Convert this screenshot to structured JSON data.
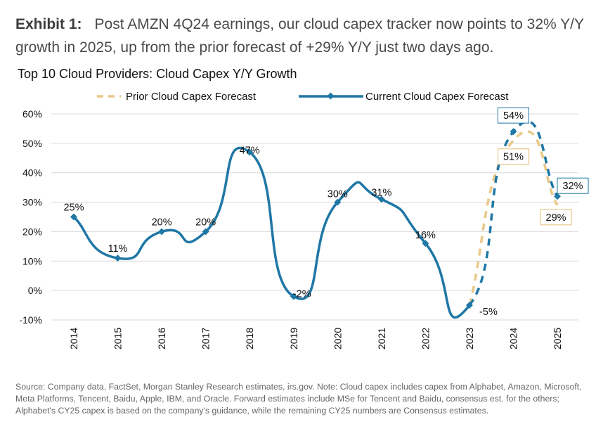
{
  "exhibit": {
    "label": "Exhibit 1:",
    "text": "Post AMZN 4Q24 earnings, our cloud capex tracker now points to 32% Y/Y growth in 2025, up from the prior forecast of +29% Y/Y just two days ago."
  },
  "colors": {
    "current": "#1f77a6",
    "prior": "#e8c98a",
    "grid": "#d9d9d9",
    "text": "#111111"
  },
  "chart_data": {
    "type": "line",
    "title": "Top 10 Cloud Providers: Cloud Capex Y/Y Growth",
    "xlabel": "",
    "ylabel": "",
    "x": [
      "2014",
      "2015",
      "2016",
      "2017",
      "2018",
      "2019",
      "2020",
      "2021",
      "2022",
      "2023",
      "2024",
      "2025"
    ],
    "ylim": [
      -10,
      60
    ],
    "yticks": [
      60,
      50,
      40,
      30,
      20,
      10,
      0,
      -10
    ],
    "ytick_labels": [
      "60%",
      "50%",
      "40%",
      "30%",
      "20%",
      "10%",
      "0%",
      "-10%"
    ],
    "grid": true,
    "legend_position": "top",
    "series": [
      {
        "name": "Prior Cloud Capex Forecast",
        "style": "dashed",
        "x": [
          "2023",
          "2024",
          "2025"
        ],
        "values": [
          -5,
          51,
          29
        ],
        "labels": [
          "",
          "51%",
          "29%"
        ],
        "boxed_labels": true
      },
      {
        "name": "Current Cloud Capex Forecast",
        "style": "solid-then-dashed",
        "dashed_from": "2023",
        "x": [
          "2014",
          "2015",
          "2016",
          "2017",
          "2018",
          "2019",
          "2020",
          "2021",
          "2022",
          "2023",
          "2024",
          "2025"
        ],
        "values": [
          25,
          11,
          20,
          20,
          47,
          -2,
          30,
          31,
          16,
          -5,
          54,
          32
        ],
        "labels": [
          "25%",
          "11%",
          "20%",
          "20%",
          "47%",
          "-2%",
          "30%",
          "31%",
          "16%",
          "-5%",
          "54%",
          "32%"
        ]
      }
    ]
  },
  "footnote": "Source: Company data, FactSet, Morgan Stanley Research estimates, irs.gov. Note: Cloud capex includes capex from Alphabet, Amazon, Microsoft, Meta Platforms, Tencent, Baidu, Apple, IBM, and Oracle. Forward estimates include MSe for Tencent and Baidu, consensus est. for the others; Alphabet's CY25 capex is based on the company's guidance, while the remaining CY25 numbers are Consensus estimates."
}
